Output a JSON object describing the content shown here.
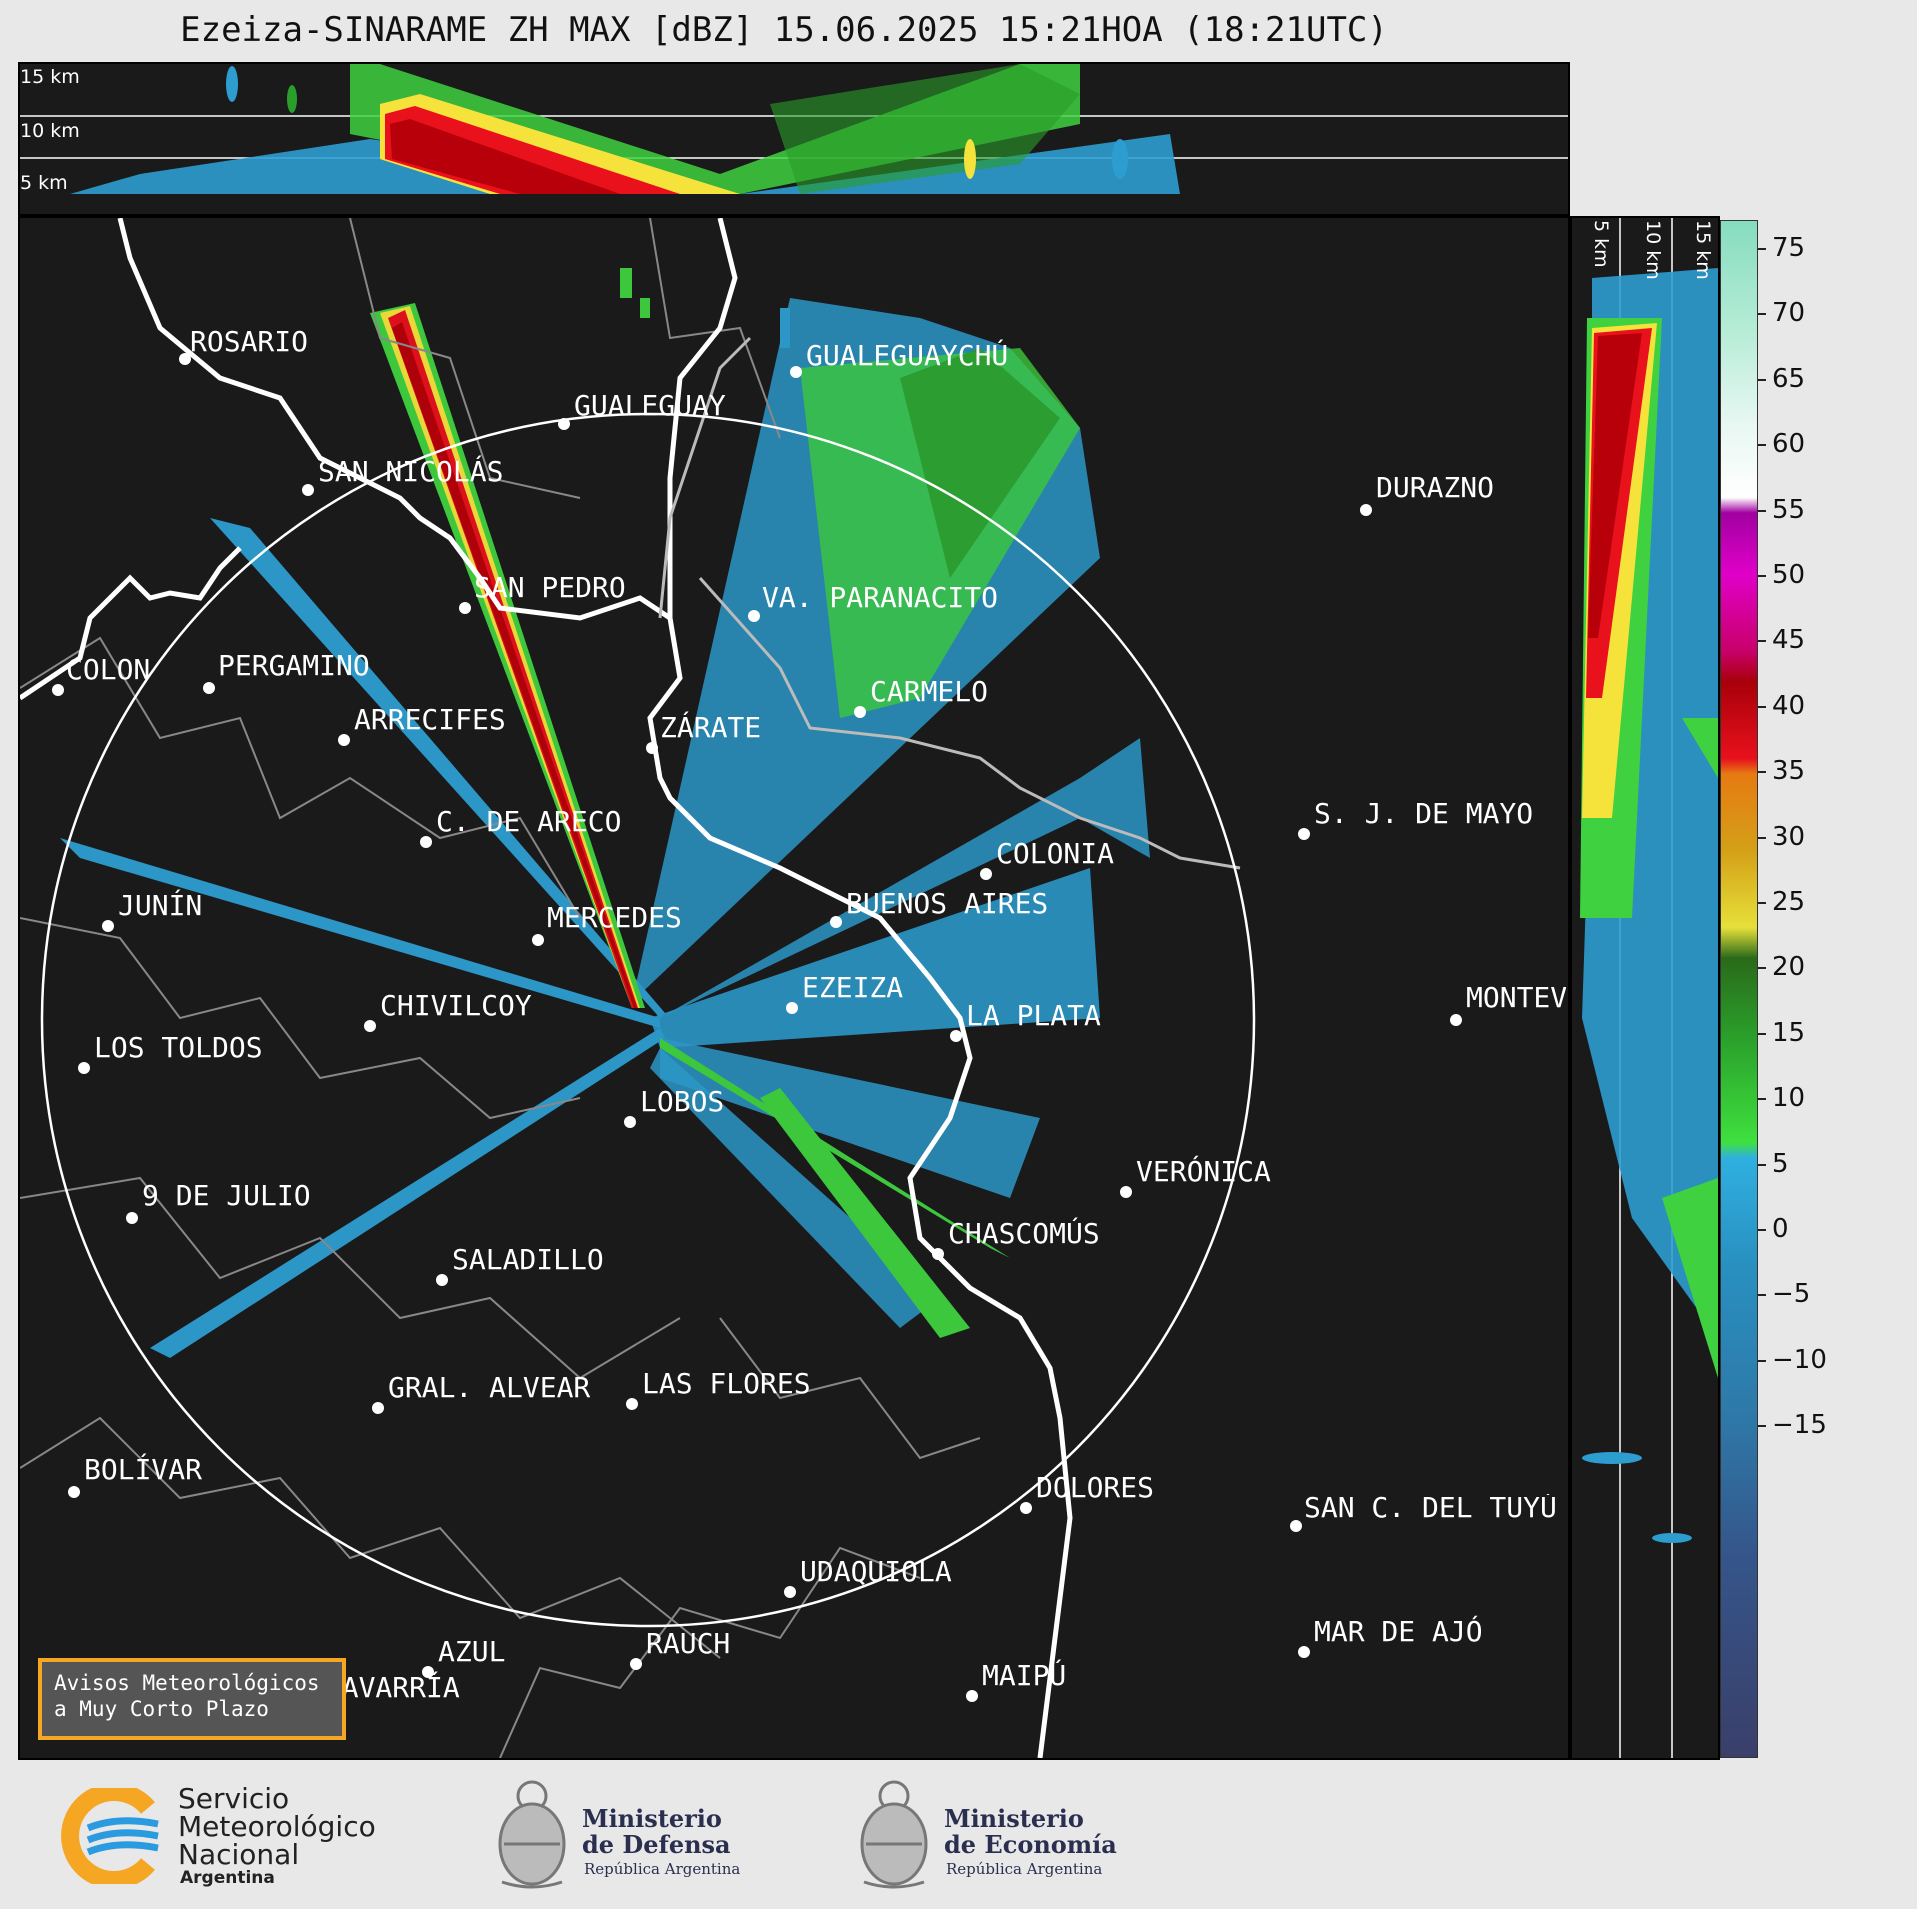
{
  "title": "Ezeiza-SINARAME ZH MAX [dBZ] 15.06.2025 15:21HOA (18:21UTC)",
  "top_height_labels": [
    "15 km",
    "10 km",
    "5 km"
  ],
  "side_height_labels": [
    "5 km",
    "10 km",
    "15 km"
  ],
  "colorbar": {
    "ticks": [
      "75",
      "70",
      "65",
      "60",
      "55",
      "50",
      "45",
      "40",
      "35",
      "30",
      "25",
      "20",
      "15",
      "10",
      "5",
      "0",
      "−5",
      "−10",
      "−15"
    ]
  },
  "cities": [
    {
      "name": "ROSARIO"
    },
    {
      "name": "GUALEGUAYCHÚ"
    },
    {
      "name": "GUALEGUAY"
    },
    {
      "name": "SAN NICOLÁS"
    },
    {
      "name": "DURAZNO"
    },
    {
      "name": "SAN PEDRO"
    },
    {
      "name": "VA. PARANACITO"
    },
    {
      "name": "COLON"
    },
    {
      "name": "PERGAMINO"
    },
    {
      "name": "CARMELO"
    },
    {
      "name": "ARRECIFES"
    },
    {
      "name": "ZÁRATE"
    },
    {
      "name": "S. J. DE MAYO"
    },
    {
      "name": "C. DE ARECO"
    },
    {
      "name": "COLONIA"
    },
    {
      "name": "JUNÍN"
    },
    {
      "name": "BUENOS AIRES"
    },
    {
      "name": "MERCEDES"
    },
    {
      "name": "EZEIZA"
    },
    {
      "name": "MONTEVIDEO"
    },
    {
      "name": "CHIVILCOY"
    },
    {
      "name": "LA PLATA"
    },
    {
      "name": "LOS TOLDOS"
    },
    {
      "name": "LOBOS"
    },
    {
      "name": "VERÓNICA"
    },
    {
      "name": "9 DE JULIO"
    },
    {
      "name": "CHASCOMÚS"
    },
    {
      "name": "SALADILLO"
    },
    {
      "name": "GRAL. ALVEAR"
    },
    {
      "name": "LAS FLORES"
    },
    {
      "name": "BOLÍVAR"
    },
    {
      "name": "DOLORES"
    },
    {
      "name": "SAN C. DEL TUYÚ"
    },
    {
      "name": "UDAQUIOLA"
    },
    {
      "name": "MAR DE AJÓ"
    },
    {
      "name": "AZUL"
    },
    {
      "name": "RAUCH"
    },
    {
      "name": "OLAVARRÍA"
    },
    {
      "name": "MAIPÚ"
    }
  ],
  "alert_box": "Avisos Meteorológicos\na Muy Corto Plazo",
  "logos": {
    "smn": {
      "line1": "Servicio",
      "line2": "Meteorológico",
      "line3": "Nacional",
      "line4": "Argentina"
    },
    "defensa": {
      "line1": "Ministerio",
      "line2": "de Defensa",
      "line3": "República Argentina"
    },
    "economia": {
      "line1": "Ministerio",
      "line2": "de Economía",
      "line3": "República Argentina"
    }
  }
}
